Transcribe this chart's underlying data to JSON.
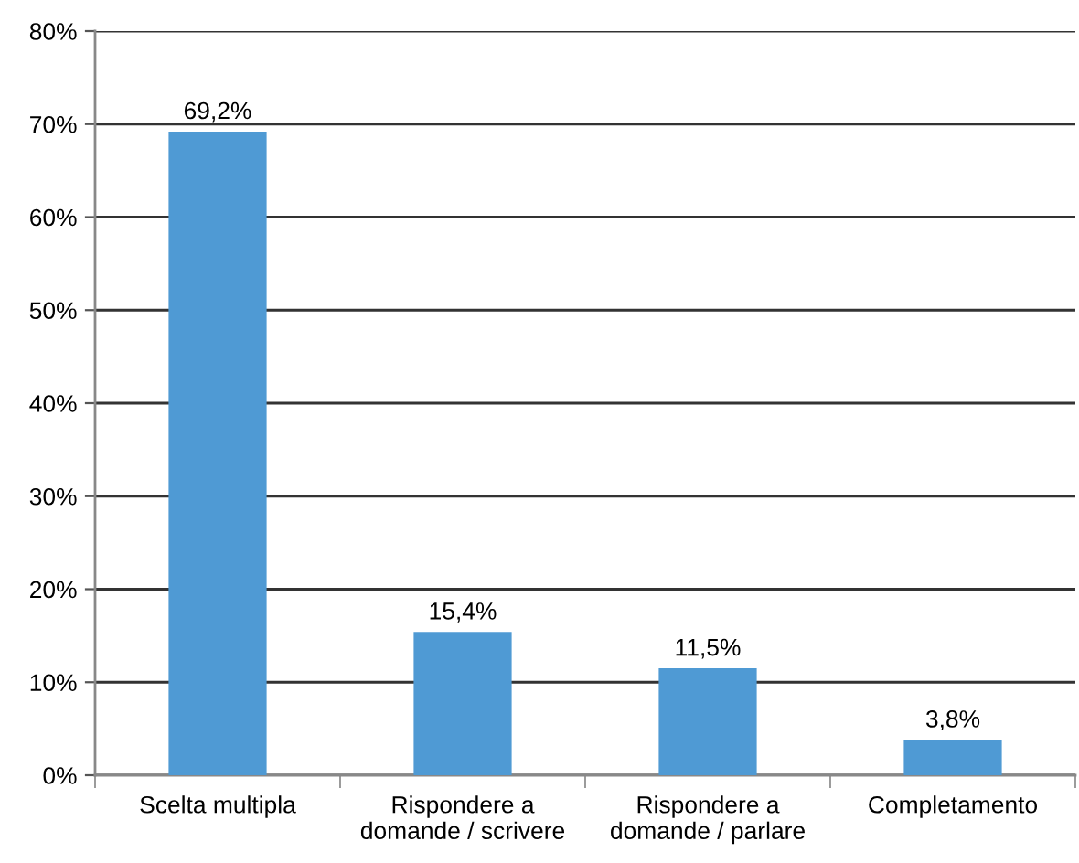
{
  "chart_data": {
    "type": "bar",
    "categories": [
      "Scelta multipla",
      "Rispondere a\ndomande / scrivere",
      "Rispondere a\ndomande / parlare",
      "Completamento"
    ],
    "values": [
      69.2,
      15.4,
      11.5,
      3.8
    ],
    "color": "#4f9ad4",
    "value_labels": [
      "69,2%",
      "15,4%",
      "11,5%",
      "3,8%"
    ],
    "ylim": [
      0,
      80
    ],
    "yticks": [
      {
        "value": 0,
        "label": "0%"
      },
      {
        "value": 10,
        "label": "10%"
      },
      {
        "value": 20,
        "label": "20%"
      },
      {
        "value": 30,
        "label": "30%"
      },
      {
        "value": 40,
        "label": "40%"
      },
      {
        "value": 50,
        "label": "50%"
      },
      {
        "value": 60,
        "label": "60%"
      },
      {
        "value": 70,
        "label": "70%"
      },
      {
        "value": 80,
        "label": "80%"
      }
    ],
    "grid": "y",
    "legend": false
  }
}
